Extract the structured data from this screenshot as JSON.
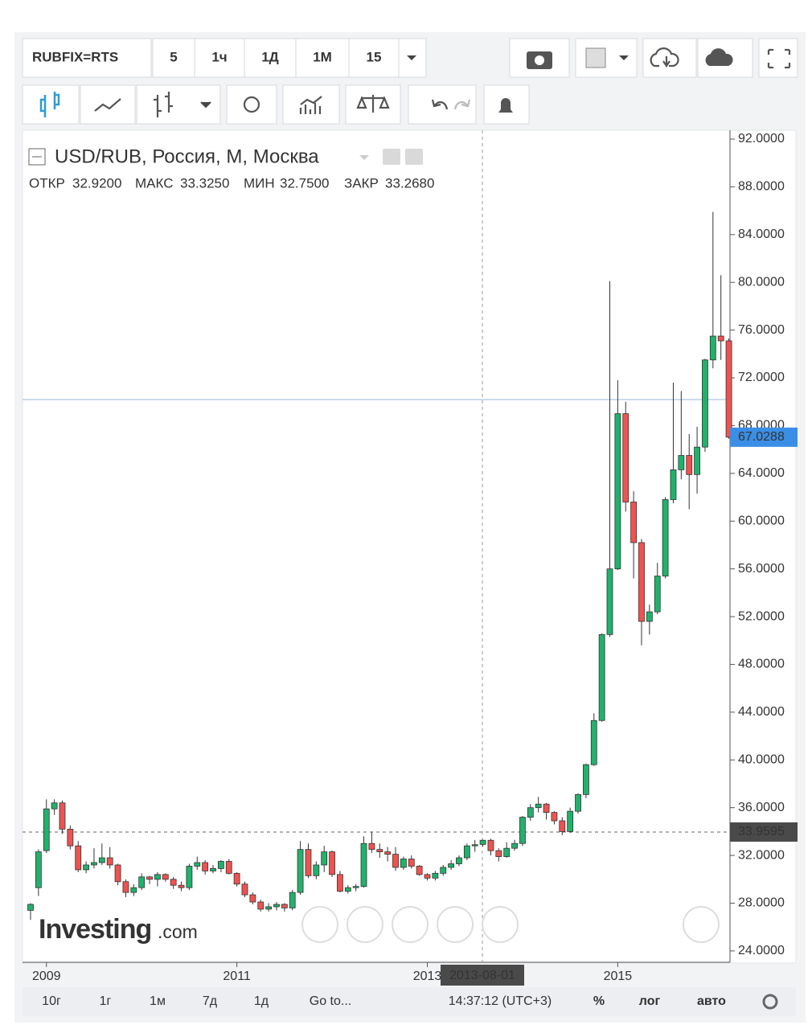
{
  "toolbar": {
    "symbol": "RUBFIX=RTS",
    "intervals": [
      "5",
      "1ч",
      "1Д",
      "1М",
      "15"
    ]
  },
  "chart_data": {
    "type": "candlestick",
    "title": "USD/RUB, Россия, M, Москва",
    "ohlc_header": [
      {
        "label": "ОТКР",
        "value": "32.9200"
      },
      {
        "label": "МАКС",
        "value": "33.3250"
      },
      {
        "label": "МИН",
        "value": "32.7500"
      },
      {
        "label": "ЗАКР",
        "value": "33.2680"
      }
    ],
    "x": [
      null,
      null,
      "2009",
      null,
      null,
      null,
      null,
      null,
      null,
      null,
      null,
      null,
      null,
      null,
      null,
      null,
      null,
      null,
      null,
      null,
      null,
      null,
      null,
      null,
      null,
      null,
      "2011",
      null,
      null,
      null,
      null,
      null,
      null,
      null,
      null,
      null,
      null,
      null,
      null,
      null,
      null,
      null,
      null,
      null,
      null,
      null,
      null,
      null,
      null,
      null,
      "2013",
      null,
      null,
      null,
      null,
      null,
      null,
      null,
      null,
      null,
      null,
      null,
      null,
      null,
      null,
      null,
      null,
      null,
      null,
      null,
      null,
      null,
      null,
      null,
      "2015",
      null,
      null,
      null,
      null,
      null,
      null,
      null,
      null,
      null,
      null,
      null,
      null,
      null,
      null
    ],
    "open": [
      27.4,
      29.3,
      32.4,
      35.9,
      36.4,
      34.2,
      32.8,
      30.8,
      31.2,
      31.4,
      31.8,
      31.2,
      29.8,
      28.9,
      29.3,
      30.2,
      30.0,
      30.4,
      30.0,
      29.5,
      29.3,
      31.1,
      31.4,
      30.7,
      30.9,
      31.5,
      30.5,
      29.6,
      28.7,
      28.1,
      27.5,
      27.7,
      27.9,
      27.6,
      28.9,
      32.5,
      30.3,
      31.2,
      32.3,
      30.4,
      29.0,
      29.3,
      29.4,
      33.0,
      32.5,
      32.3,
      32.1,
      31.0,
      31.7,
      31.1,
      30.4,
      30.1,
      30.5,
      31.0,
      31.3,
      31.8,
      32.8,
      32.92,
      33.268,
      32.4,
      31.9,
      32.6,
      33.0,
      35.2,
      36.0,
      36.3,
      35.6,
      34.9,
      34.0,
      35.7,
      37.1,
      39.6,
      43.3,
      50.5,
      56.0,
      69.0,
      61.6,
      58.2,
      51.6,
      52.4,
      55.4,
      61.8,
      64.3,
      65.5,
      63.9,
      66.2,
      73.5,
      75.5,
      75.1
    ],
    "high": [
      28.0,
      32.5,
      36.7,
      36.7,
      36.6,
      34.5,
      33.2,
      31.5,
      32.6,
      33.0,
      32.7,
      31.3,
      30.0,
      29.6,
      30.5,
      30.3,
      30.6,
      30.5,
      30.2,
      29.8,
      31.3,
      31.9,
      31.6,
      31.2,
      31.6,
      31.7,
      30.6,
      29.8,
      28.9,
      28.3,
      28.0,
      28.1,
      28.0,
      29.1,
      33.2,
      33.0,
      31.5,
      32.8,
      32.4,
      30.7,
      29.5,
      29.6,
      33.6,
      34.0,
      33.0,
      32.7,
      32.7,
      31.9,
      32.0,
      31.2,
      30.5,
      30.7,
      31.2,
      31.6,
      32.0,
      33.0,
      33.3,
      33.325,
      33.4,
      32.6,
      33.1,
      33.3,
      35.3,
      36.3,
      36.9,
      36.4,
      35.7,
      35.2,
      36.0,
      37.2,
      39.7,
      43.9,
      50.6,
      80.1,
      71.8,
      70.0,
      62.5,
      58.5,
      53.0,
      56.5,
      62.0,
      71.6,
      70.9,
      67.3,
      67.9,
      73.6,
      85.9,
      80.6,
      75.3
    ],
    "low": [
      26.6,
      28.6,
      32.2,
      35.4,
      33.8,
      32.5,
      30.6,
      30.5,
      30.9,
      31.2,
      30.9,
      29.5,
      28.5,
      28.6,
      29.1,
      29.6,
      29.4,
      29.8,
      29.2,
      29.0,
      29.1,
      30.8,
      30.4,
      30.5,
      30.6,
      30.4,
      29.4,
      28.5,
      27.9,
      27.3,
      27.3,
      27.4,
      27.3,
      27.4,
      28.7,
      30.1,
      30.0,
      30.6,
      30.2,
      28.9,
      28.8,
      29.0,
      29.3,
      32.2,
      31.8,
      31.5,
      30.7,
      30.8,
      30.9,
      30.3,
      29.9,
      29.9,
      30.3,
      30.8,
      31.1,
      31.6,
      32.3,
      32.75,
      32.0,
      31.5,
      31.8,
      32.4,
      32.8,
      34.9,
      35.6,
      35.0,
      34.6,
      33.7,
      33.9,
      35.5,
      36.8,
      39.5,
      43.2,
      50.3,
      55.9,
      60.8,
      55.2,
      49.6,
      50.5,
      52.2,
      55.2,
      61.5,
      63.5,
      61.0,
      62.3,
      65.8,
      72.8,
      73.5,
      66.9
    ],
    "close": [
      27.9,
      32.3,
      35.9,
      36.4,
      34.2,
      32.8,
      30.8,
      31.2,
      31.4,
      31.8,
      31.2,
      29.8,
      28.9,
      29.3,
      30.2,
      30.0,
      30.4,
      30.0,
      29.5,
      29.3,
      31.1,
      31.4,
      30.7,
      30.9,
      31.5,
      30.5,
      29.6,
      28.7,
      28.1,
      27.5,
      27.7,
      27.9,
      27.6,
      28.9,
      32.5,
      30.3,
      31.2,
      32.3,
      30.4,
      29.0,
      29.3,
      29.4,
      33.0,
      32.5,
      32.3,
      32.1,
      31.0,
      31.7,
      31.1,
      30.4,
      30.1,
      30.5,
      31.0,
      31.3,
      31.8,
      32.8,
      32.9,
      33.268,
      32.4,
      31.9,
      32.6,
      33.0,
      35.2,
      36.0,
      36.3,
      35.6,
      34.9,
      34.0,
      35.7,
      37.1,
      39.6,
      43.3,
      50.5,
      56.0,
      69.0,
      61.6,
      58.2,
      51.6,
      52.4,
      55.4,
      61.8,
      64.3,
      65.5,
      63.9,
      66.2,
      73.5,
      75.5,
      75.1,
      67.0288
    ],
    "up_color": "#20b26c",
    "down_color": "#ef5350",
    "ylim": [
      23.05,
      92.74
    ],
    "yticks": [
      {
        "value": 24,
        "label": "24.0000"
      },
      {
        "value": 28,
        "label": "28.0000"
      },
      {
        "value": 32,
        "label": "32.0000"
      },
      {
        "value": 36,
        "label": "36.0000"
      },
      {
        "value": 40,
        "label": "40.0000"
      },
      {
        "value": 44,
        "label": "44.0000"
      },
      {
        "value": 48,
        "label": "48.0000"
      },
      {
        "value": 52,
        "label": "52.0000"
      },
      {
        "value": 56,
        "label": "56.0000"
      },
      {
        "value": 60,
        "label": "60.0000"
      },
      {
        "value": 64,
        "label": "64.0000"
      },
      {
        "value": 68,
        "label": "68.0000"
      },
      {
        "value": 72,
        "label": "72.0000"
      },
      {
        "value": 76,
        "label": "76.0000"
      },
      {
        "value": 80,
        "label": "80.0000"
      },
      {
        "value": 84,
        "label": "84.0000"
      },
      {
        "value": 88,
        "label": "88.0000"
      },
      {
        "value": 92,
        "label": "92.0000"
      }
    ],
    "last_price": 67.0288,
    "price_line": 33.9595,
    "crosshair_label": "2013-08-01"
  },
  "watermark": {
    "brand": "Investing",
    "suffix": ".com"
  },
  "bottom_bar": {
    "ranges": [
      "10г",
      "1г",
      "1м",
      "7д",
      "1д"
    ],
    "goto": "Go to...",
    "time": "14:37:12 (UTC+3)",
    "options": [
      "%",
      "лог",
      "авто"
    ]
  }
}
